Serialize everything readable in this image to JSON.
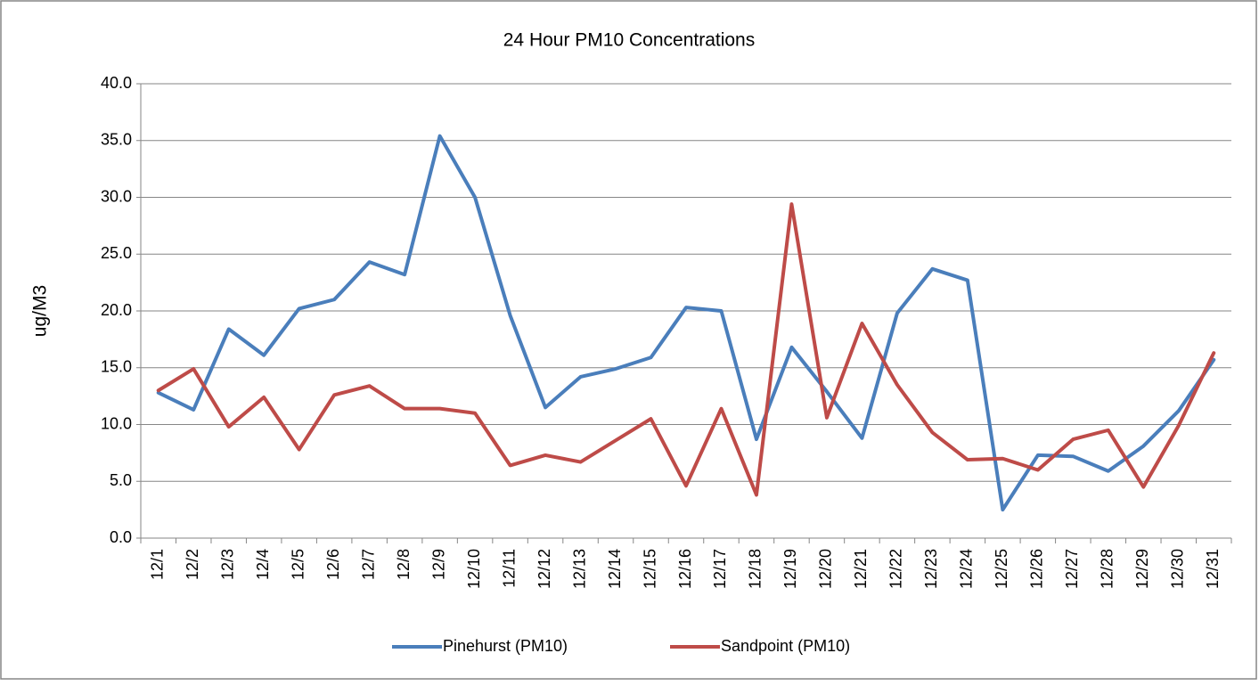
{
  "chart_data": {
    "type": "line",
    "title": "24 Hour PM10 Concentrations",
    "y_label": "ug/M3",
    "categories": [
      "12/1",
      "12/2",
      "12/3",
      "12/4",
      "12/5",
      "12/6",
      "12/7",
      "12/8",
      "12/9",
      "12/10",
      "12/11",
      "12/12",
      "12/13",
      "12/14",
      "12/15",
      "12/16",
      "12/17",
      "12/18",
      "12/19",
      "12/20",
      "12/21",
      "12/22",
      "12/23",
      "12/24",
      "12/25",
      "12/26",
      "12/27",
      "12/28",
      "12/29",
      "12/30",
      "12/31"
    ],
    "series": [
      {
        "name": "Pinehurst (PM10)",
        "color": "#4a7ebb",
        "values": [
          12.8,
          11.3,
          18.4,
          16.1,
          20.2,
          21.0,
          24.3,
          23.2,
          35.4,
          30.0,
          19.6,
          11.5,
          14.2,
          14.9,
          15.9,
          20.3,
          20.0,
          8.7,
          16.8,
          12.9,
          8.8,
          19.8,
          23.7,
          22.7,
          2.5,
          7.3,
          7.2,
          5.9,
          8.1,
          11.2,
          15.7
        ]
      },
      {
        "name": "Sandpoint (PM10)",
        "color": "#be4b48",
        "values": [
          13.0,
          14.9,
          9.8,
          12.4,
          7.8,
          12.6,
          13.4,
          11.4,
          11.4,
          11.0,
          6.4,
          7.3,
          6.7,
          8.6,
          10.5,
          4.6,
          11.4,
          3.8,
          29.4,
          10.6,
          18.9,
          13.5,
          9.3,
          6.9,
          7.0,
          6.0,
          8.7,
          9.5,
          4.5,
          9.9,
          16.3
        ]
      }
    ],
    "ylim": [
      0,
      40
    ],
    "yticks": [
      {
        "value": 0,
        "label": "0.0"
      },
      {
        "value": 5,
        "label": "5.0"
      },
      {
        "value": 10,
        "label": "10.0"
      },
      {
        "value": 15,
        "label": "15.0"
      },
      {
        "value": 20,
        "label": "20.0"
      },
      {
        "value": 25,
        "label": "25.0"
      },
      {
        "value": 30,
        "label": "30.0"
      },
      {
        "value": 35,
        "label": "35.0"
      },
      {
        "value": 40,
        "label": "40.0"
      }
    ],
    "grid": true,
    "legend": "bottom"
  }
}
